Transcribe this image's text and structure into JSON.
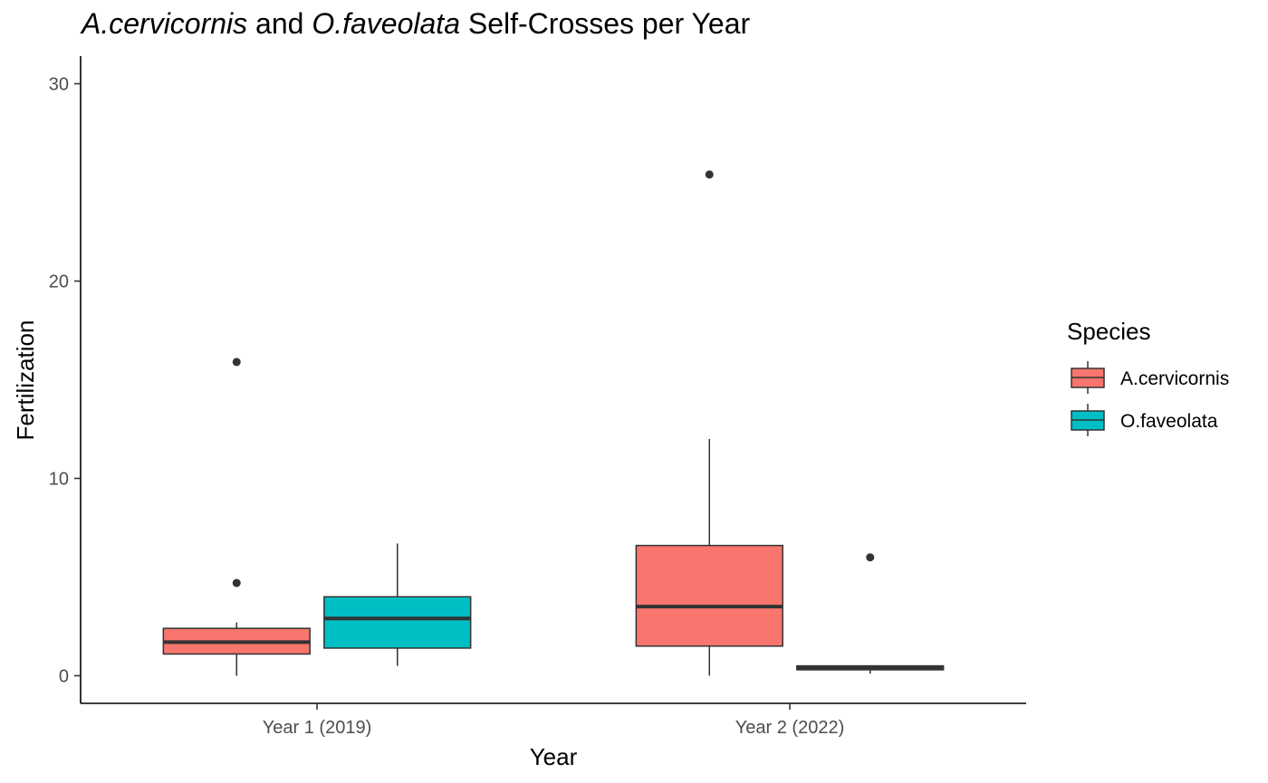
{
  "chart_data": {
    "type": "boxplot",
    "title_parts": [
      {
        "text": "A.cervicornis",
        "italic": true
      },
      {
        "text": " and ",
        "italic": false
      },
      {
        "text": "O.faveolata",
        "italic": true
      },
      {
        "text": " Self-Crosses per Year",
        "italic": false
      }
    ],
    "xlabel": "Year",
    "ylabel": "Fertilization",
    "ylim": [
      -1.4,
      31.4
    ],
    "yticks": [
      0,
      10,
      20,
      30
    ],
    "categories": [
      "Year 1 (2019)",
      "Year 2 (2022)"
    ],
    "legend": {
      "title": "Species",
      "position": "right"
    },
    "series": [
      {
        "name": "A.cervicornis",
        "color": "#F8766D",
        "boxes": [
          {
            "category": "Year 1 (2019)",
            "whisker_low": 0.0,
            "q1": 1.1,
            "median": 1.7,
            "q3": 2.4,
            "whisker_high": 2.7,
            "outliers": [
              4.7,
              15.9
            ]
          },
          {
            "category": "Year 2 (2022)",
            "whisker_low": 0.0,
            "q1": 1.5,
            "median": 3.5,
            "q3": 6.6,
            "whisker_high": 12.0,
            "outliers": [
              25.4
            ]
          }
        ]
      },
      {
        "name": "O.faveolata",
        "color": "#00BFC4",
        "boxes": [
          {
            "category": "Year 1 (2019)",
            "whisker_low": 0.5,
            "q1": 1.4,
            "median": 2.9,
            "q3": 4.0,
            "whisker_high": 6.7,
            "outliers": []
          },
          {
            "category": "Year 2 (2022)",
            "whisker_low": 0.1,
            "q1": 0.3,
            "median": 0.4,
            "q3": 0.5,
            "whisker_high": 0.5,
            "outliers": [
              6.0
            ]
          }
        ]
      }
    ],
    "grid": false
  }
}
